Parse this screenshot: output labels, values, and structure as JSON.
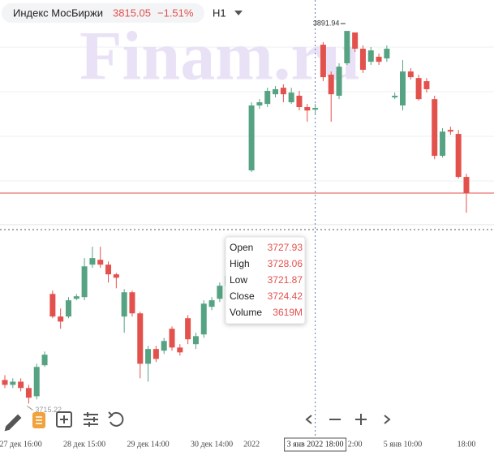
{
  "header": {
    "title": "Индекс МосБиржи",
    "last": 3815.05,
    "change": {
      "value": -1.51,
      "label": "−1.51%"
    },
    "timeframe": "H1"
  },
  "watermark": "Finam.ru",
  "chart_data": {
    "type": "candlestick",
    "categories": [
      null,
      null,
      "27 дек 16:00",
      null,
      null,
      null,
      null,
      null,
      null,
      null,
      "28 дек 15:00",
      null,
      null,
      null,
      null,
      null,
      null,
      null,
      "29 дек 14:00",
      null,
      null,
      null,
      null,
      null,
      null,
      null,
      "30 дек 14:00",
      null,
      null,
      null,
      null,
      "2022",
      null,
      null,
      null,
      null,
      null,
      null,
      null,
      "3 янв 2022 18:00",
      null,
      null,
      null,
      null,
      "2:00",
      null,
      null,
      null,
      null,
      null,
      "5 янв 10:00",
      null,
      null,
      null,
      null,
      null,
      null,
      null,
      "18:00"
    ],
    "open": [
      3726.4,
      3724.1,
      3725.6,
      3722.6,
      3718.7,
      3733.4,
      3767.2,
      3756.5,
      3756.5,
      3764.9,
      3765.7,
      3781.1,
      3783.4,
      3781.1,
      3776.5,
      3756.5,
      3768.0,
      3758.0,
      3734.1,
      3741.1,
      3740.3,
      3750.7,
      3741.8,
      3755.7,
      3743.4,
      3748.0,
      3761.1,
      3764.9,
      3771.1,
      null,
      null,
      3825.8,
      3856.6,
      3857.3,
      3861.9,
      3865.0,
      3858.1,
      3861.2,
      3855.8,
      3854.6,
      3885.4,
      3871.2,
      3861.2,
      3876.6,
      3891.2,
      3883.5,
      3877.3,
      3879.7,
      3878.9,
      3860.4,
      3856.6,
      3872.7,
      3869.6,
      3868.1,
      3859.6,
      3832.7,
      3845.0,
      3843.1,
      3822.7
    ],
    "high": [
      3728.7,
      3727.2,
      3727.2,
      3724.1,
      3734.1,
      3739.9,
      3768.8,
      3760.3,
      3765.7,
      3767.2,
      3784.2,
      3789.6,
      3789.6,
      3782.6,
      3777.2,
      3769.5,
      3768.8,
      3758.8,
      3742.6,
      3742.6,
      3746.4,
      3751.8,
      3743.4,
      3757.2,
      3748.8,
      3764.2,
      3765.7,
      3772.6,
      3778.0,
      null,
      null,
      3858.1,
      3859.6,
      3865.0,
      3865.8,
      3866.6,
      3865.0,
      3863.5,
      3857.3,
      3857.3,
      3886.6,
      3872.7,
      3876.6,
      3891.94,
      3891.2,
      3885.0,
      3884.3,
      3881.2,
      3885.0,
      3862.7,
      3878.1,
      3874.3,
      3871.2,
      3869.6,
      3861.2,
      3845.8,
      3846.5,
      3845.0,
      3824.2
    ],
    "low": [
      3722.6,
      3722.6,
      3721.0,
      3715.22,
      3717.2,
      3732.6,
      3755.7,
      3750.7,
      3755.7,
      3764.2,
      3764.2,
      3779.6,
      3779.6,
      3772.6,
      3769.9,
      3748.8,
      3756.5,
      3727.2,
      3725.6,
      3734.9,
      3738.7,
      3740.3,
      3738.0,
      3743.4,
      3741.1,
      3746.4,
      3759.5,
      3763.4,
      3769.5,
      null,
      null,
      3825.0,
      3855.0,
      3855.8,
      3860.4,
      3858.1,
      3857.3,
      3854.2,
      3848.9,
      3852.7,
      3868.1,
      3848.9,
      3859.6,
      3875.8,
      3882.0,
      3872.0,
      3875.8,
      3875.8,
      3877.3,
      3859.6,
      3854.2,
      3868.9,
      3858.9,
      3862.7,
      3831.1,
      3831.9,
      3842.7,
      3821.9,
      3805.7
    ],
    "close": [
      3724.1,
      3725.6,
      3722.6,
      3718.0,
      3732.6,
      3738.4,
      3756.5,
      3754.1,
      3764.2,
      3766.1,
      3780.3,
      3784.2,
      3781.1,
      3776.5,
      3774.9,
      3768.0,
      3758.0,
      3734.1,
      3741.1,
      3736.4,
      3744.9,
      3741.8,
      3739.5,
      3745.7,
      3747.2,
      3762.6,
      3764.2,
      3771.1,
      3775.7,
      null,
      null,
      3856.6,
      3858.1,
      3863.5,
      3864.3,
      3861.9,
      3862.7,
      3855.8,
      3854.2,
      3855.4,
      3870.0,
      3861.9,
      3875.0,
      3891.94,
      3883.5,
      3873.5,
      3882.7,
      3877.3,
      3883.5,
      3861.2,
      3872.7,
      3870.0,
      3859.6,
      3864.3,
      3832.7,
      3844.2,
      3844.2,
      3822.7,
      3815.05
    ],
    "up_color": "#55a383",
    "down_color": "#e3514d",
    "ylim": [
      3700,
      3906.6
    ]
  },
  "tooltip": {
    "rows": [
      {
        "label": "Open",
        "value": 3727.93
      },
      {
        "label": "High",
        "value": 3728.06
      },
      {
        "label": "Low",
        "value": 3721.87
      },
      {
        "label": "Close",
        "value": 3724.42
      },
      {
        "label": "Volume",
        "value": "3619M"
      }
    ]
  }
}
